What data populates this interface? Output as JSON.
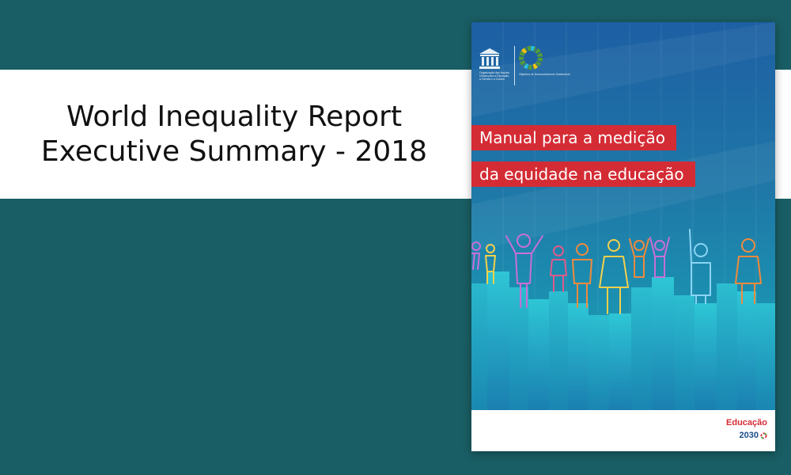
{
  "banner": {
    "title_line_1": "World Inequality Report",
    "title_line_2": "Executive Summary - 2018"
  },
  "cover": {
    "title_line_1": "Manual para a medição",
    "title_line_2": "da equidade na educação",
    "unesco_text": "Organização das Nações Unidas para a Educação, a Ciência e a Cultura",
    "sdg_text": "Objetivos de Desenvolvimento Sustentável",
    "footer_logo_word": "Educação",
    "footer_logo_year": "2030"
  },
  "colors": {
    "background": "#195e64",
    "banner": "#ffffff",
    "cover_title_bg": "#d42c35",
    "cover_blue_top": "#1d5fa3",
    "cover_teal_bottom": "#18a8b8"
  },
  "icons": [
    "unesco-temple-icon",
    "sdg-wheel-icon",
    "people-figures-illustration",
    "education2030-ring-icon"
  ]
}
